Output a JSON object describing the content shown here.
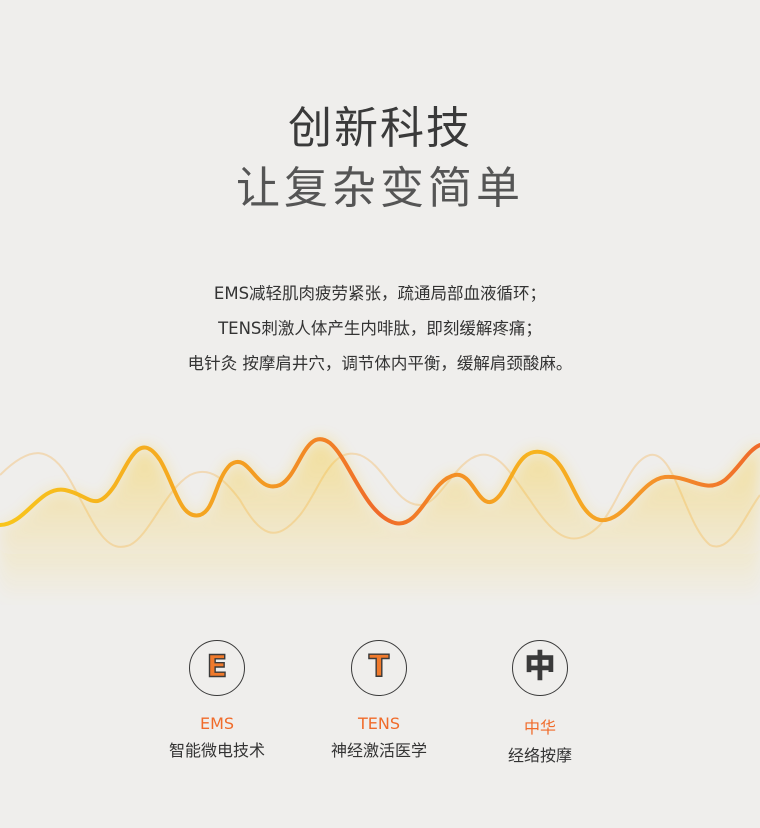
{
  "heading": {
    "line1": "创新科技",
    "line2": "让复杂变简单"
  },
  "description": {
    "line1": "EMS减轻肌肉疲劳紧张，疏通局部血液循环；",
    "line2": "TENS刺激人体产生内啡肽，即刻缓解疼痛；",
    "line3": "电针灸 按摩肩井穴，调节体内平衡，缓解肩颈酸麻。"
  },
  "colors": {
    "background": "#efeeec",
    "accent_orange": "#f06b2a",
    "wave_yellow": "#f7c21a",
    "wave_orange": "#f0652a"
  },
  "features": [
    {
      "icon": "letter-e-icon",
      "glyph": "E",
      "name": "EMS",
      "subtitle": "智能微电技术"
    },
    {
      "icon": "letter-t-icon",
      "glyph": "T",
      "name": "TENS",
      "subtitle": "神经激活医学"
    },
    {
      "icon": "zhong-character-icon",
      "glyph": "中",
      "name": "中华",
      "subtitle": "经络按摩"
    }
  ]
}
